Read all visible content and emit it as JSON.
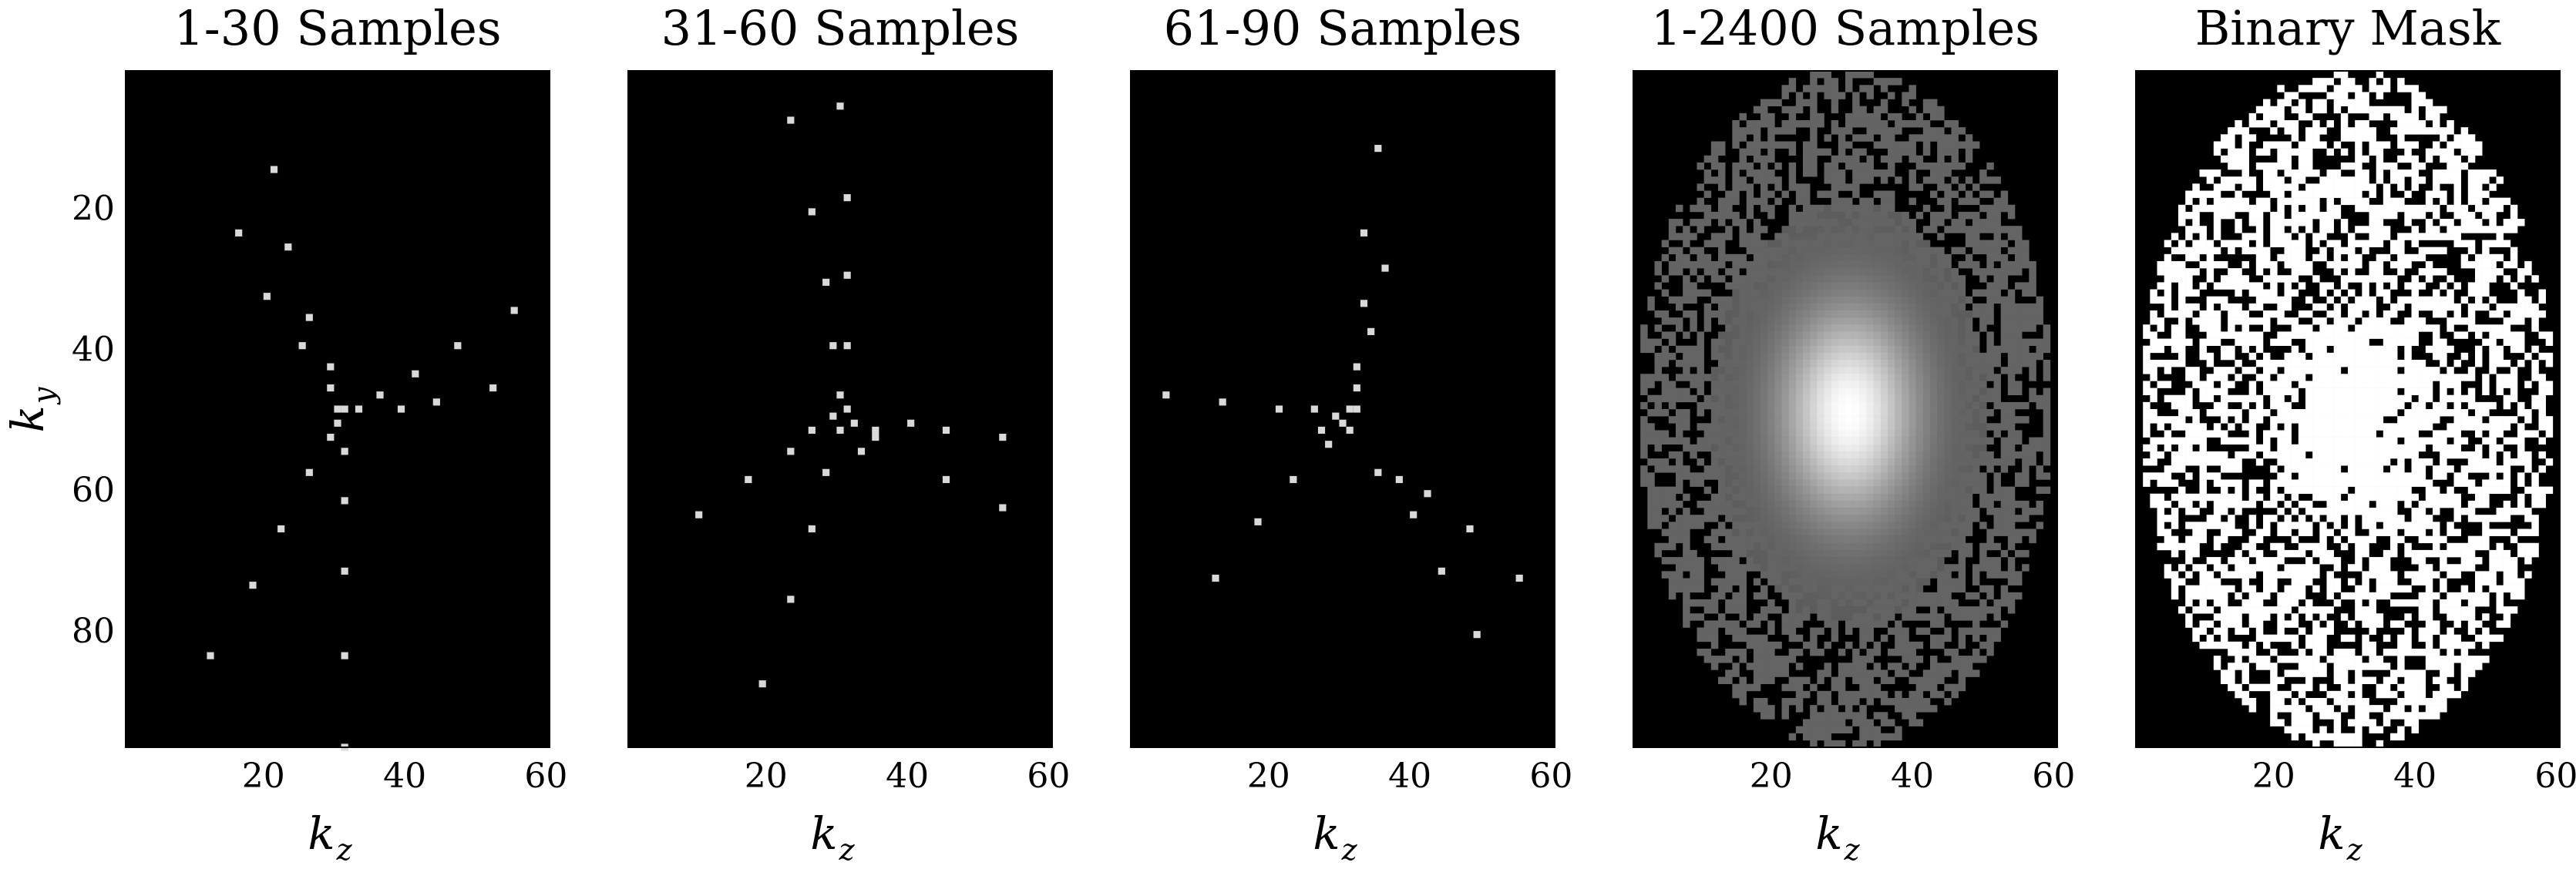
{
  "figure": {
    "panels": [
      {
        "title": "1-30 Samples"
      },
      {
        "title": "31-60 Samples"
      },
      {
        "title": "61-90 Samples"
      },
      {
        "title": "1-2400 Samples"
      },
      {
        "title": "Binary Mask"
      }
    ],
    "xlabel_main": "k",
    "xlabel_sub": "z",
    "ylabel_main": "k",
    "ylabel_sub": "y",
    "colors": {
      "background": "#000000",
      "sample": "#d9d9d9",
      "mask": "#ffffff",
      "density_mid": "#6e6e6e"
    }
  },
  "chart_data": [
    {
      "type": "heatmap",
      "title": "1-30 Samples",
      "xlabel": "k_z",
      "ylabel": "k_y",
      "xlim": [
        0.5,
        60.5
      ],
      "ylim": [
        96.5,
        0.5
      ],
      "xticks": [
        20,
        40,
        60
      ],
      "yticks": [
        20,
        40,
        60,
        80
      ],
      "points": [
        [
          21,
          14
        ],
        [
          16,
          23
        ],
        [
          23,
          25
        ],
        [
          20,
          32
        ],
        [
          26,
          35
        ],
        [
          25,
          39
        ],
        [
          29,
          42
        ],
        [
          29,
          45
        ],
        [
          31,
          48
        ],
        [
          33,
          48
        ],
        [
          36,
          46
        ],
        [
          39,
          48
        ],
        [
          41,
          43
        ],
        [
          44,
          47
        ],
        [
          47,
          39
        ],
        [
          52,
          45
        ],
        [
          55,
          34
        ],
        [
          30,
          48
        ],
        [
          30,
          50
        ],
        [
          29,
          52
        ],
        [
          31,
          54
        ],
        [
          26,
          57
        ],
        [
          31,
          61
        ],
        [
          22,
          65
        ],
        [
          18,
          73
        ],
        [
          31,
          71
        ],
        [
          12,
          83
        ],
        [
          31,
          83
        ],
        [
          31,
          96
        ]
      ]
    },
    {
      "type": "heatmap",
      "title": "31-60 Samples",
      "xlabel": "k_z",
      "xlim": [
        0.5,
        60.5
      ],
      "ylim": [
        96.5,
        0.5
      ],
      "xticks": [
        20,
        40,
        60
      ],
      "points": [
        [
          30,
          5
        ],
        [
          23,
          7
        ],
        [
          31,
          18
        ],
        [
          26,
          20
        ],
        [
          31,
          29
        ],
        [
          28,
          30
        ],
        [
          29,
          39
        ],
        [
          31,
          39
        ],
        [
          30,
          46
        ],
        [
          31,
          48
        ],
        [
          29,
          49
        ],
        [
          26,
          51
        ],
        [
          30,
          51
        ],
        [
          35,
          51
        ],
        [
          32,
          50
        ],
        [
          35,
          52
        ],
        [
          40,
          50
        ],
        [
          45,
          51
        ],
        [
          53,
          52
        ],
        [
          33,
          54
        ],
        [
          23,
          54
        ],
        [
          28,
          57
        ],
        [
          17,
          58
        ],
        [
          45,
          58
        ],
        [
          53,
          62
        ],
        [
          10,
          63
        ],
        [
          26,
          65
        ],
        [
          23,
          75
        ],
        [
          19,
          87
        ]
      ]
    },
    {
      "type": "heatmap",
      "title": "61-90 Samples",
      "xlabel": "k_z",
      "xlim": [
        0.5,
        60.5
      ],
      "ylim": [
        96.5,
        0.5
      ],
      "xticks": [
        20,
        40,
        60
      ],
      "points": [
        [
          35,
          11
        ],
        [
          33,
          23
        ],
        [
          36,
          28
        ],
        [
          33,
          33
        ],
        [
          34,
          37
        ],
        [
          32,
          42
        ],
        [
          32,
          45
        ],
        [
          31,
          48
        ],
        [
          32,
          48
        ],
        [
          26,
          48
        ],
        [
          29,
          49
        ],
        [
          30,
          50
        ],
        [
          27,
          51
        ],
        [
          31,
          51
        ],
        [
          28,
          53
        ],
        [
          5,
          46
        ],
        [
          13,
          47
        ],
        [
          21,
          48
        ],
        [
          23,
          58
        ],
        [
          35,
          57
        ],
        [
          38,
          58
        ],
        [
          42,
          60
        ],
        [
          40,
          63
        ],
        [
          18,
          64
        ],
        [
          48,
          65
        ],
        [
          44,
          71
        ],
        [
          12,
          72
        ],
        [
          55,
          72
        ],
        [
          49,
          80
        ]
      ]
    },
    {
      "type": "heatmap",
      "title": "1-2400 Samples",
      "xlabel": "k_z",
      "xlim": [
        0.5,
        60.5
      ],
      "ylim": [
        96.5,
        0.5
      ],
      "xticks": [
        20,
        40,
        60
      ],
      "description_center": [
        31,
        49
      ],
      "extent": {
        "kz_range": [
          2,
          59
        ],
        "ky_range": [
          1,
          96
        ]
      }
    },
    {
      "type": "heatmap",
      "title": "Binary Mask",
      "xlabel": "k_z",
      "xlim": [
        0.5,
        60.5
      ],
      "ylim": [
        96.5,
        0.5
      ],
      "xticks": [
        20,
        40,
        60
      ],
      "extent": {
        "kz_range": [
          2,
          59
        ],
        "ky_range": [
          1,
          96
        ]
      }
    }
  ]
}
